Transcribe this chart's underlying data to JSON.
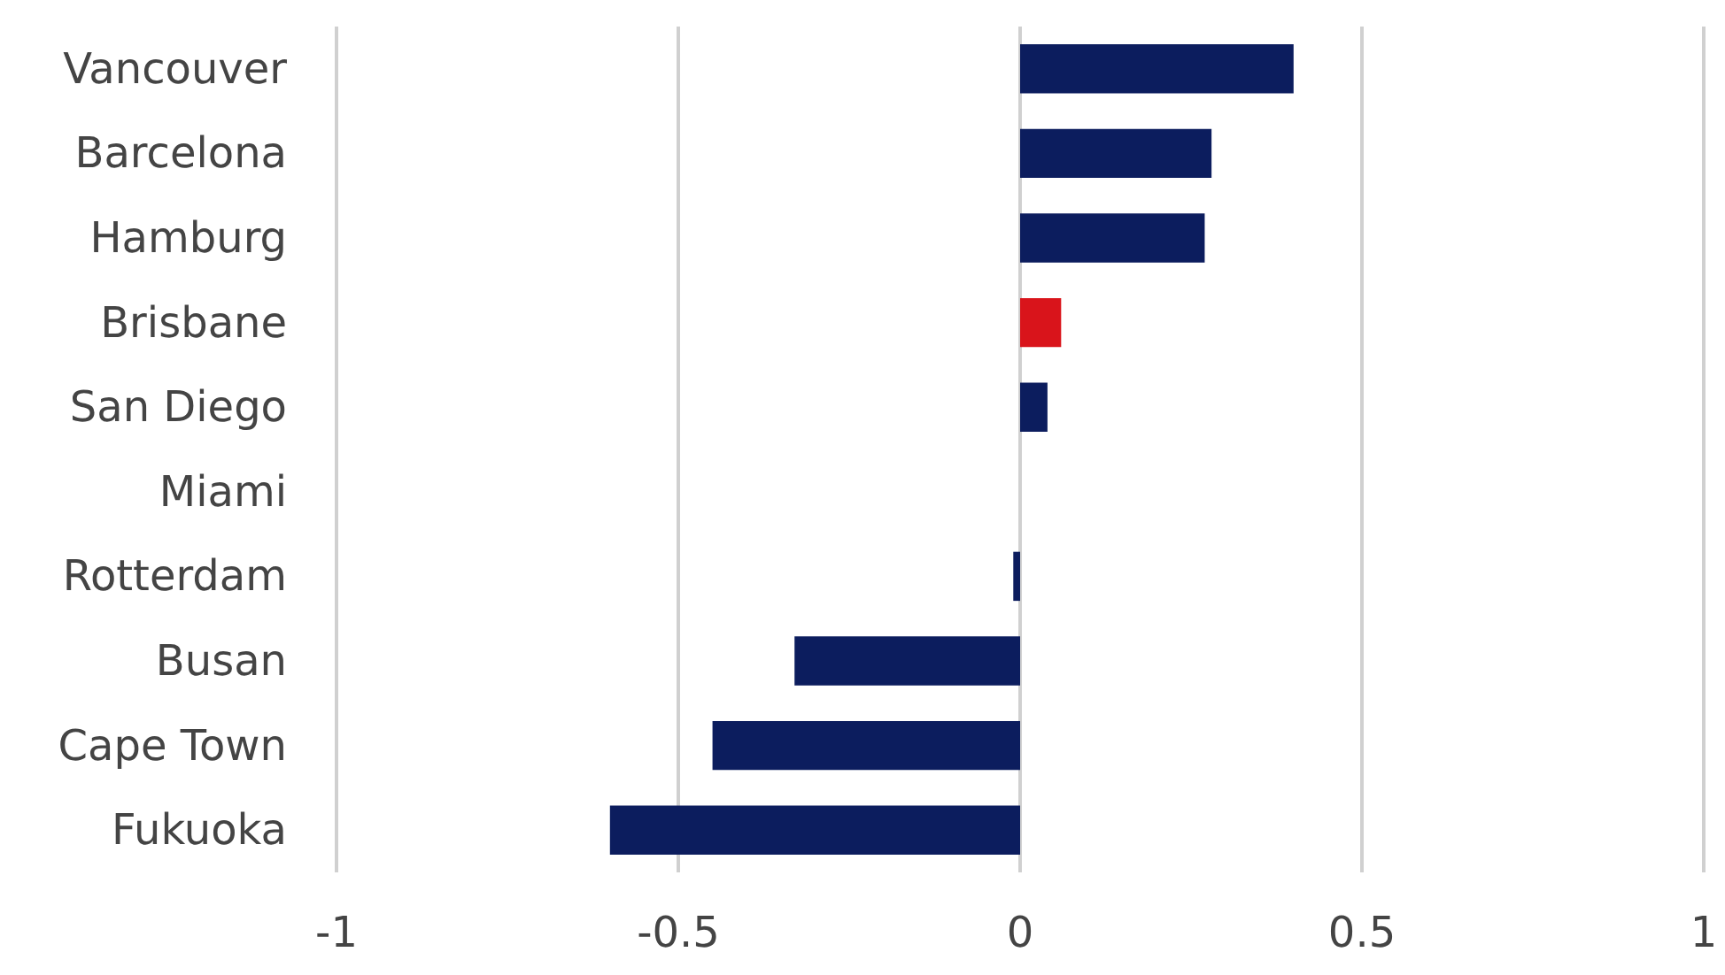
{
  "chart_data": {
    "type": "bar",
    "orientation": "horizontal",
    "categories": [
      "Vancouver",
      "Barcelona",
      "Hamburg",
      "Brisbane",
      "San Diego",
      "Miami",
      "Rotterdam",
      "Busan",
      "Cape Town",
      "Fukuoka"
    ],
    "values": [
      0.4,
      0.28,
      0.27,
      0.06,
      0.04,
      0,
      -0.01,
      -0.33,
      -0.45,
      -0.6
    ],
    "colors": [
      "#0c1d5e",
      "#0c1d5e",
      "#0c1d5e",
      "#d9141b",
      "#0c1d5e",
      "#0c1d5e",
      "#0c1d5e",
      "#0c1d5e",
      "#0c1d5e",
      "#0c1d5e"
    ],
    "xlim": [
      -1,
      1
    ],
    "xticks": [
      -1,
      -0.5,
      0,
      0.5,
      1
    ],
    "grid": "x"
  }
}
